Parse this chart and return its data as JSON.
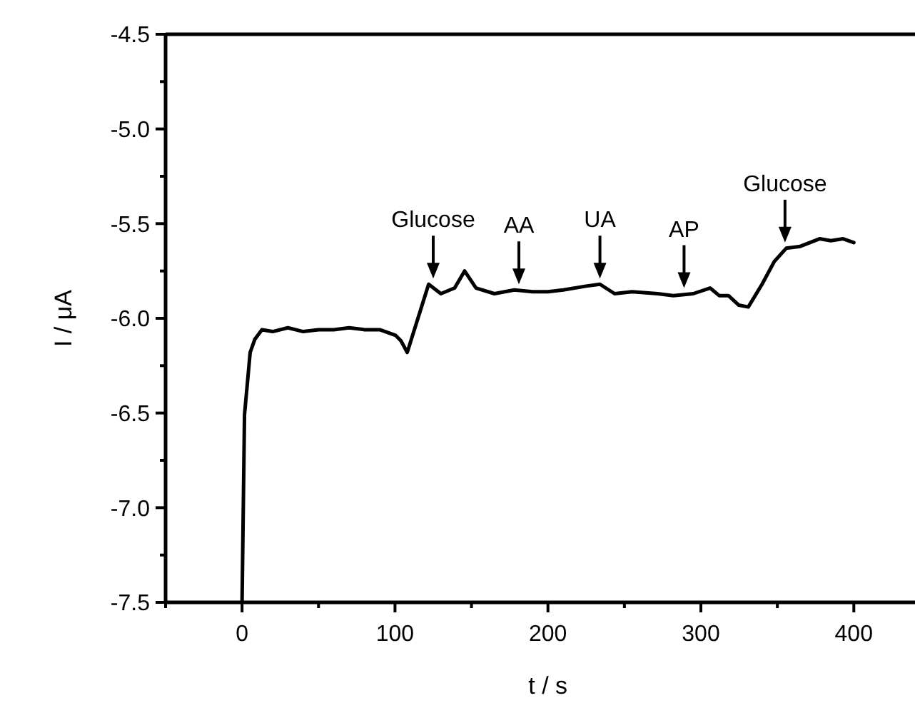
{
  "chart_data": {
    "type": "line",
    "xlabel": "t / s",
    "ylabel": "I / μA",
    "xlim": [
      -50,
      440
    ],
    "xticks": [
      {
        "value": -50,
        "label": null
      },
      0,
      {
        "value": 50,
        "label": null
      },
      100,
      {
        "value": 150,
        "label": null
      },
      200,
      {
        "value": 250,
        "label": null
      },
      300,
      {
        "value": 350,
        "label": null
      },
      400
    ],
    "ylim": [
      -7.5,
      -4.5
    ],
    "yticks": [
      {
        "value": -7.5,
        "label": "-7.5"
      },
      {
        "value": -7.25,
        "label": null
      },
      {
        "value": -7,
        "label": "-7.0"
      },
      {
        "value": -6.75,
        "label": null
      },
      {
        "value": -6.5,
        "label": "-6.5"
      },
      {
        "value": -6.25,
        "label": null
      },
      {
        "value": -6,
        "label": "-6.0"
      },
      {
        "value": -5.75,
        "label": null
      },
      {
        "value": -5.5,
        "label": "-5.5"
      },
      {
        "value": -5.25,
        "label": null
      },
      {
        "value": -5,
        "label": "-5.0"
      },
      {
        "value": -4.75,
        "label": null
      },
      {
        "value": -4.5,
        "label": "-4.5"
      }
    ],
    "grid": false,
    "marker": "none",
    "line_style": "solid",
    "series": [
      {
        "color": "#000000",
        "x": [
          0,
          1.6,
          5.3,
          8.4,
          13,
          20,
          30,
          40,
          50,
          60,
          70,
          80,
          90,
          100.4,
          104,
          108,
          115,
          122,
          130,
          139,
          145.5,
          153,
          165,
          178,
          190,
          200,
          210,
          225,
          234,
          243.6,
          255,
          271.7,
          282,
          295,
          306,
          312,
          318,
          324.7,
          331,
          340,
          348,
          355.8,
          365,
          377.6,
          385,
          393,
          400
        ],
        "values": [
          -7.5,
          -6.51,
          -6.18,
          -6.11,
          -6.06,
          -6.07,
          -6.05,
          -6.07,
          -6.06,
          -6.06,
          -6.05,
          -6.06,
          -6.06,
          -6.09,
          -6.12,
          -6.18,
          -6.0,
          -5.82,
          -5.87,
          -5.84,
          -5.75,
          -5.84,
          -5.87,
          -5.85,
          -5.86,
          -5.86,
          -5.85,
          -5.83,
          -5.82,
          -5.87,
          -5.86,
          -5.87,
          -5.88,
          -5.87,
          -5.84,
          -5.88,
          -5.88,
          -5.93,
          -5.94,
          -5.82,
          -5.7,
          -5.63,
          -5.62,
          -5.58,
          -5.59,
          -5.58,
          -5.6
        ]
      }
    ],
    "annotations": [
      {
        "text": "Glucose",
        "x": 125,
        "y": -5.82
      },
      {
        "text": "AA",
        "x": 181,
        "y": -5.85
      },
      {
        "text": "UA",
        "x": 234,
        "y": -5.82
      },
      {
        "text": "AP",
        "x": 289,
        "y": -5.87
      },
      {
        "text": "Glucose",
        "x": 355,
        "y": -5.63
      }
    ]
  }
}
